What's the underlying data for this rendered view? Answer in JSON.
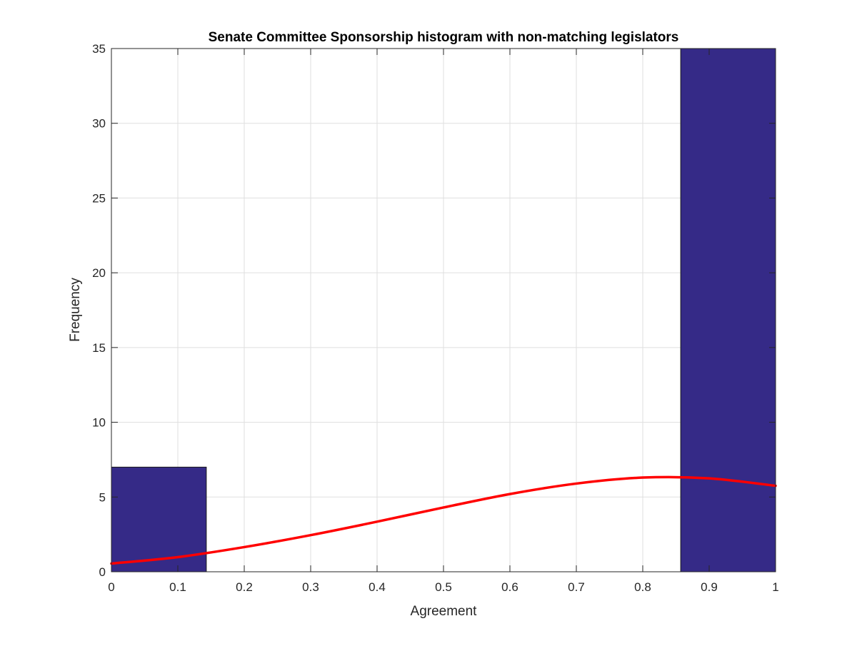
{
  "chart_data": {
    "type": "bar",
    "title": "Senate Committee Sponsorship histogram with non-matching legislators",
    "xlabel": "Agreement",
    "ylabel": "Frequency",
    "xlim": [
      0,
      1
    ],
    "ylim": [
      0,
      35
    ],
    "xticks": [
      0,
      0.1,
      0.2,
      0.3,
      0.4,
      0.5,
      0.6,
      0.7,
      0.8,
      0.9,
      1
    ],
    "xtick_labels": [
      "0",
      "0.1",
      "0.2",
      "0.3",
      "0.4",
      "0.5",
      "0.6",
      "0.7",
      "0.8",
      "0.9",
      "1"
    ],
    "yticks": [
      0,
      5,
      10,
      15,
      20,
      25,
      30,
      35
    ],
    "ytick_labels": [
      "0",
      "5",
      "10",
      "15",
      "20",
      "25",
      "30",
      "35"
    ],
    "grid": true,
    "bins": [
      {
        "x_start": 0,
        "x_end": 0.1429,
        "count": 7
      },
      {
        "x_start": 0.1429,
        "x_end": 0.2857,
        "count": 0
      },
      {
        "x_start": 0.2857,
        "x_end": 0.4286,
        "count": 0
      },
      {
        "x_start": 0.4286,
        "x_end": 0.5714,
        "count": 0
      },
      {
        "x_start": 0.5714,
        "x_end": 0.7143,
        "count": 0
      },
      {
        "x_start": 0.7143,
        "x_end": 0.8571,
        "count": 0
      },
      {
        "x_start": 0.8571,
        "x_end": 1,
        "count": 35
      }
    ],
    "fit_curve": {
      "type": "line",
      "x": [
        0,
        0.1,
        0.2,
        0.3,
        0.4,
        0.5,
        0.6,
        0.7,
        0.8,
        0.9,
        1.0
      ],
      "y": [
        0.55,
        0.98,
        1.65,
        2.45,
        3.35,
        4.3,
        5.2,
        5.9,
        6.3,
        6.25,
        5.75
      ]
    }
  },
  "colors": {
    "bar_fill": "#352a87",
    "bar_edge": "#1a1a1a",
    "fit_line": "#ff0000",
    "grid": "#dfdfdf",
    "axis": "#262626"
  }
}
